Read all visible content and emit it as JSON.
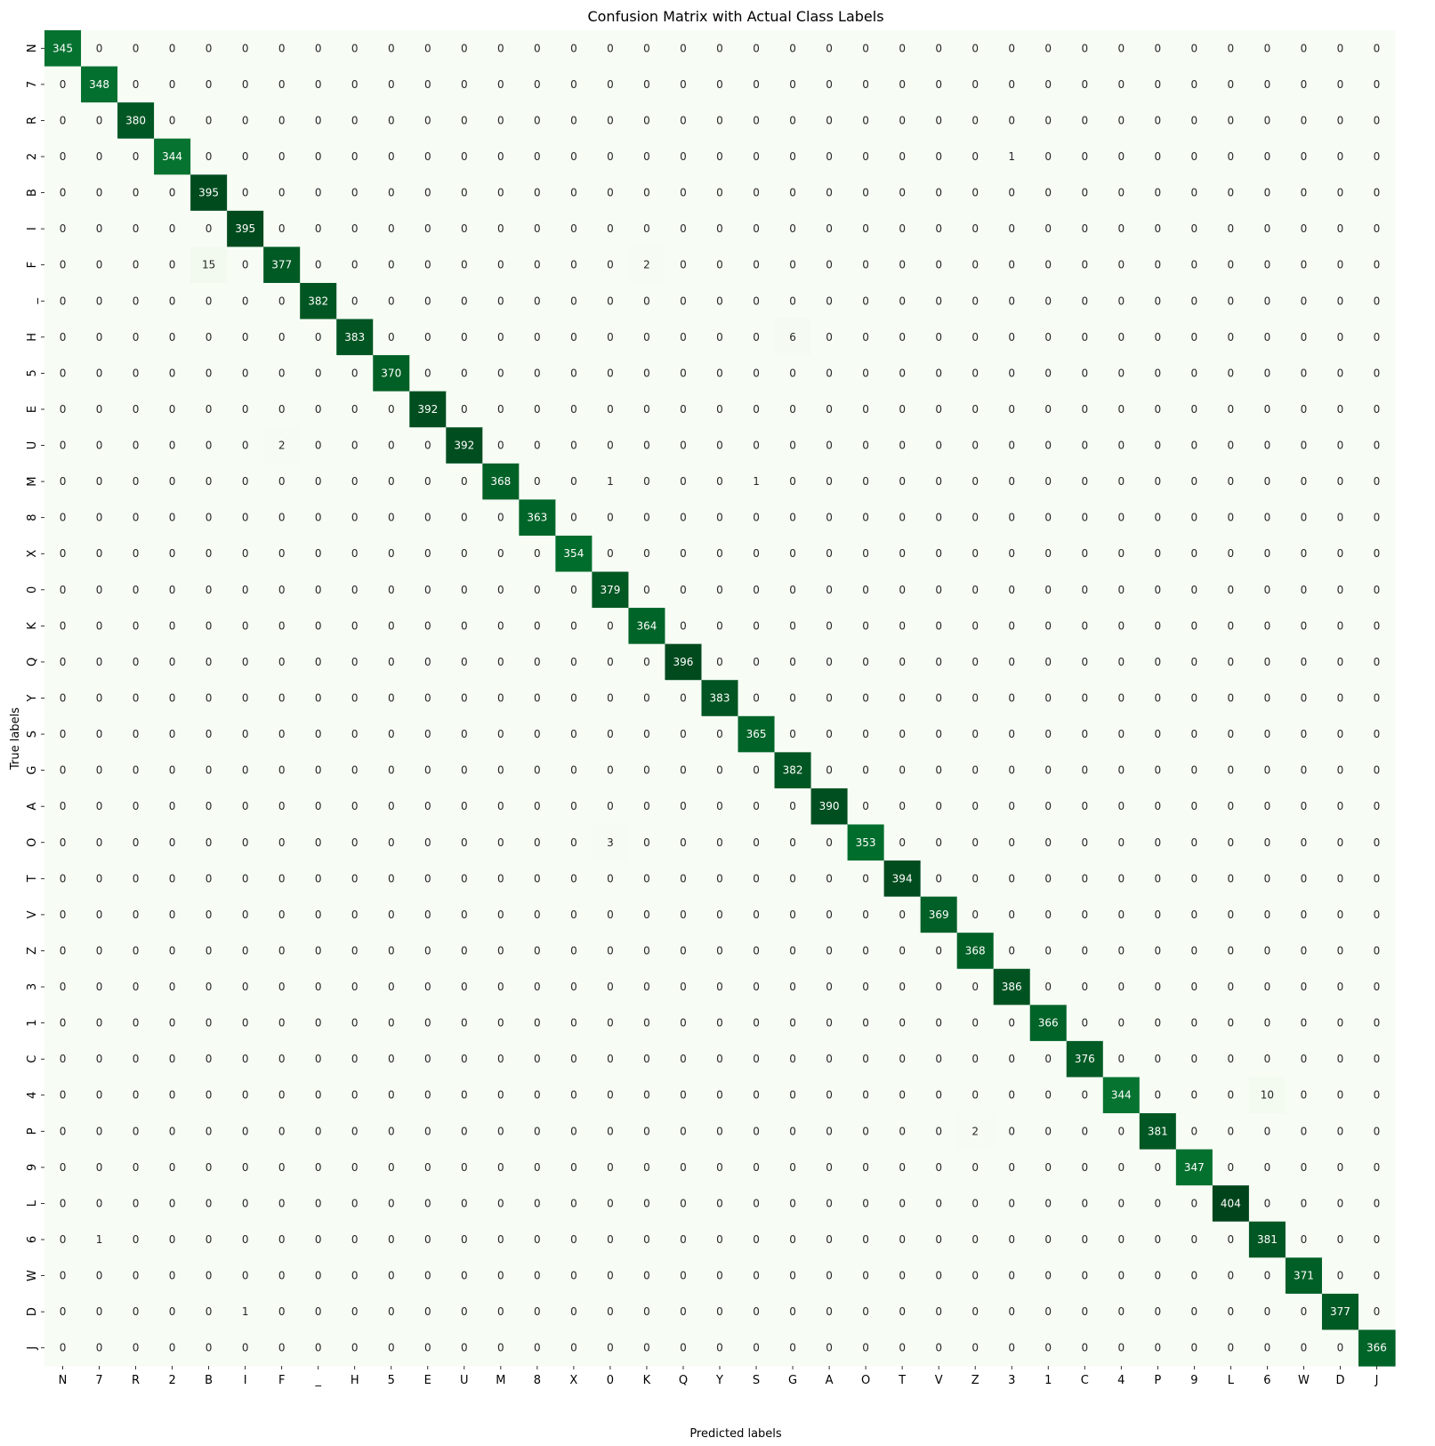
{
  "chart_data": {
    "type": "heatmap",
    "title": "Confusion Matrix with Actual Class Labels",
    "xlabel": "Predicted labels",
    "ylabel": "True labels",
    "x_categories": [
      "N",
      "7",
      "R",
      "2",
      "B",
      "I",
      "F",
      "_",
      "H",
      "5",
      "E",
      "U",
      "M",
      "8",
      "X",
      "0",
      "K",
      "Q",
      "Y",
      "S",
      "G",
      "A",
      "O",
      "T",
      "V",
      "Z",
      "3",
      "1",
      "C",
      "4",
      "P",
      "9",
      "L",
      "6",
      "W",
      "D",
      "J"
    ],
    "y_categories": [
      "N",
      "7",
      "R",
      "2",
      "B",
      "I",
      "F",
      "_",
      "H",
      "5",
      "E",
      "U",
      "M",
      "8",
      "X",
      "0",
      "K",
      "Q",
      "Y",
      "S",
      "G",
      "A",
      "O",
      "T",
      "V",
      "Z",
      "3",
      "1",
      "C",
      "4",
      "P",
      "9",
      "L",
      "6",
      "W",
      "D",
      "J"
    ],
    "diagonal": [
      345,
      348,
      380,
      344,
      395,
      395,
      377,
      382,
      383,
      370,
      392,
      392,
      368,
      363,
      354,
      379,
      364,
      396,
      383,
      365,
      382,
      390,
      353,
      394,
      369,
      368,
      386,
      366,
      376,
      344,
      381,
      347,
      404,
      381,
      371,
      377,
      366
    ],
    "off_diagonal": [
      {
        "row": "2",
        "col": "3",
        "value": 1
      },
      {
        "row": "F",
        "col": "B",
        "value": 15
      },
      {
        "row": "F",
        "col": "K",
        "value": 2
      },
      {
        "row": "H",
        "col": "G",
        "value": 6
      },
      {
        "row": "U",
        "col": "F",
        "value": 2
      },
      {
        "row": "M",
        "col": "0",
        "value": 1
      },
      {
        "row": "M",
        "col": "S",
        "value": 1
      },
      {
        "row": "O",
        "col": "0",
        "value": 3
      },
      {
        "row": "4",
        "col": "6",
        "value": 10
      },
      {
        "row": "P",
        "col": "Z",
        "value": 2
      },
      {
        "row": "6",
        "col": "7",
        "value": 1
      },
      {
        "row": "D",
        "col": "I",
        "value": 1
      }
    ],
    "colormap": "Greens",
    "color_low": "#f7fcf5",
    "color_high": "#00441b",
    "colorbar": false,
    "grid": false
  }
}
